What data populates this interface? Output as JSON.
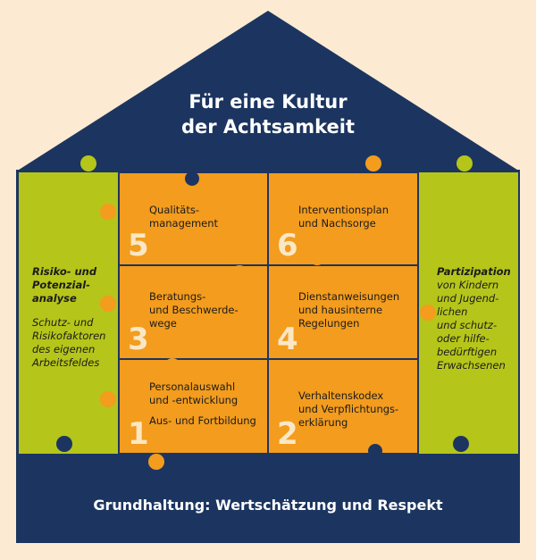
{
  "title_lines": [
    "Für eine Kultur",
    "der Achtsamkeit"
  ],
  "base": "Grundhaltung: Wertschätzung und Respekt",
  "left": {
    "heading": [
      "Risiko- und",
      "Potenzial-",
      "analyse"
    ],
    "body": [
      "Schutz- und",
      "Risikofaktoren",
      "des eigenen",
      "Arbeitsfeldes"
    ]
  },
  "right": {
    "heading": "Partizipation",
    "body": [
      "von Kindern",
      "und Jugend-",
      "lichen",
      "und schutz-",
      "oder hilfe-",
      "bedürftigen",
      "Erwachsenen"
    ]
  },
  "pieces": [
    {
      "number": "5",
      "lines": [
        "Qualitäts-",
        "management"
      ]
    },
    {
      "number": "6",
      "lines": [
        "Interventionsplan",
        "und Nachsorge"
      ]
    },
    {
      "number": "3",
      "lines": [
        "Beratungs-",
        "und Beschwerde-",
        "wege"
      ]
    },
    {
      "number": "4",
      "lines": [
        "Dienstanweisungen",
        "und hausinterne",
        "Regelungen"
      ]
    },
    {
      "number": "1",
      "lines": [
        "Personalauswahl",
        "und -entwicklung"
      ],
      "extra": "Aus- und Fortbildung"
    },
    {
      "number": "2",
      "lines": [
        "Verhaltenskodex",
        "und Verpflichtungs-",
        "erklärung"
      ]
    }
  ],
  "colors": {
    "navy": "#1c3560",
    "green": "#b5c51a",
    "orange": "#f39c1e",
    "background": "#fcebd2"
  }
}
